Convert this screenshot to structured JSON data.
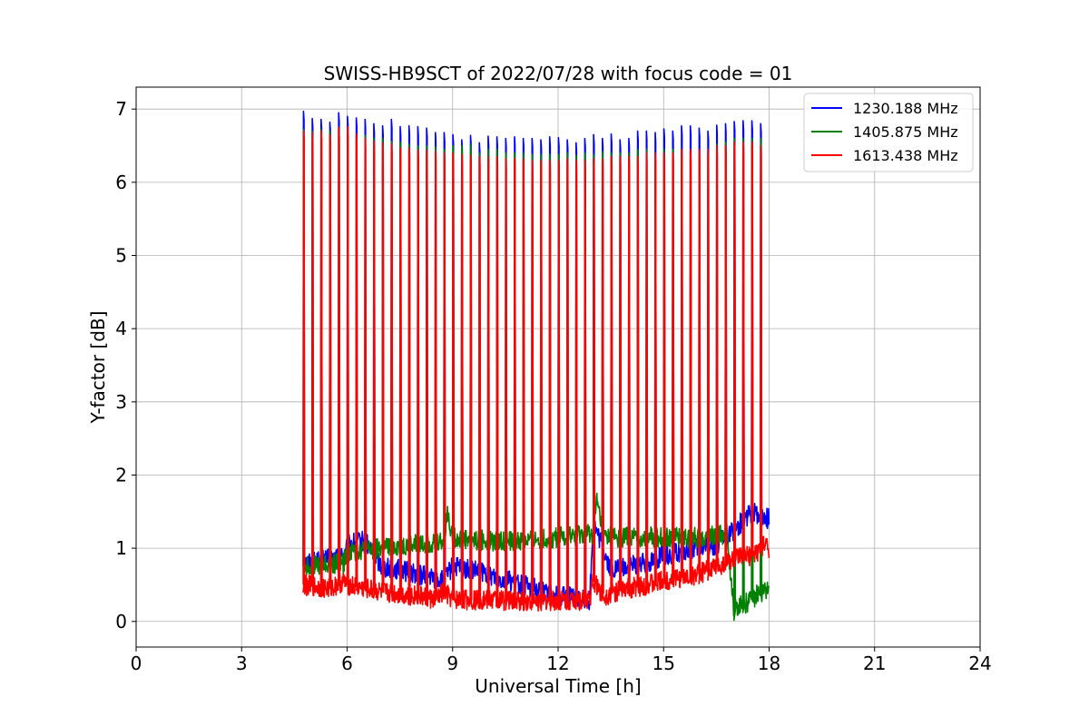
{
  "chart_data": {
    "type": "line",
    "title": "SWISS-HB9SCT of 2022/07/28 with focus code = 01",
    "xlabel": "Universal Time [h]",
    "ylabel": "Y-factor [dB]",
    "xlim": [
      0,
      24
    ],
    "ylim": [
      -0.35,
      7.3
    ],
    "xticks": [
      0,
      3,
      6,
      9,
      12,
      15,
      18,
      21,
      24
    ],
    "yticks": [
      0,
      1,
      2,
      3,
      4,
      5,
      6,
      7
    ],
    "grid": true,
    "legend_position": "top-right",
    "scan_times_h": [
      4.75,
      5.0,
      5.25,
      5.5,
      5.75,
      6.0,
      6.25,
      6.5,
      6.75,
      7.0,
      7.25,
      7.5,
      7.75,
      8.0,
      8.25,
      8.5,
      8.75,
      9.0,
      9.25,
      9.5,
      9.75,
      10.0,
      10.25,
      10.5,
      10.75,
      11.0,
      11.25,
      11.5,
      11.75,
      12.0,
      12.25,
      12.5,
      12.75,
      13.0,
      13.25,
      13.5,
      13.75,
      14.0,
      14.25,
      14.5,
      14.75,
      15.0,
      15.25,
      15.5,
      15.75,
      16.0,
      16.25,
      16.5,
      16.75,
      17.0,
      17.25,
      17.5,
      17.75
    ],
    "series": [
      {
        "name": "1230.188 MHz",
        "color": "#0000ff",
        "peaks_db": [
          6.97,
          6.87,
          6.86,
          6.82,
          6.95,
          6.9,
          6.88,
          6.86,
          6.8,
          6.77,
          6.86,
          6.76,
          6.77,
          6.76,
          6.74,
          6.68,
          6.68,
          6.65,
          6.58,
          6.64,
          6.54,
          6.63,
          6.62,
          6.6,
          6.62,
          6.6,
          6.6,
          6.58,
          6.62,
          6.61,
          6.58,
          6.54,
          6.6,
          6.65,
          6.6,
          6.66,
          6.58,
          6.6,
          6.7,
          6.7,
          6.68,
          6.73,
          6.7,
          6.77,
          6.77,
          6.74,
          6.7,
          6.78,
          6.8,
          6.83,
          6.84,
          6.84,
          6.8
        ],
        "baseline_t": [
          4.75,
          5.5,
          5.9,
          6.0,
          6.5,
          7.0,
          8.0,
          8.75,
          9.0,
          10.0,
          11.0,
          12.0,
          12.9,
          13.0,
          13.5,
          14.0,
          14.5,
          15.0,
          15.5,
          16.0,
          16.5,
          17.0,
          17.5,
          18.0
        ],
        "baseline_db": [
          0.8,
          0.85,
          0.9,
          1.05,
          1.1,
          0.75,
          0.65,
          0.55,
          0.75,
          0.65,
          0.5,
          0.35,
          0.3,
          1.35,
          0.7,
          0.75,
          0.8,
          0.9,
          0.95,
          1.0,
          1.05,
          1.25,
          1.5,
          1.4
        ]
      },
      {
        "name": "1405.875 MHz",
        "color": "#008000",
        "peaks_db": [
          6.72,
          6.7,
          6.72,
          6.7,
          6.75,
          6.72,
          6.65,
          6.64,
          6.6,
          6.6,
          6.56,
          6.55,
          6.52,
          6.5,
          6.5,
          6.48,
          6.45,
          6.5,
          6.5,
          6.52,
          6.4,
          6.45,
          6.45,
          6.4,
          6.4,
          6.4,
          6.38,
          6.38,
          6.38,
          6.38,
          6.4,
          6.37,
          6.4,
          6.38,
          6.42,
          6.4,
          6.4,
          6.4,
          6.45,
          6.45,
          6.4,
          6.45,
          6.45,
          6.45,
          6.4,
          6.38,
          6.38,
          6.52,
          6.55,
          6.6,
          6.6,
          6.6,
          6.6
        ],
        "baseline_t": [
          4.75,
          5.5,
          5.9,
          6.0,
          7.0,
          8.0,
          8.75,
          8.85,
          9.0,
          10.0,
          11.0,
          12.0,
          13.0,
          13.1,
          13.3,
          14.0,
          15.0,
          16.0,
          16.8,
          17.0,
          17.5,
          17.9,
          18.0
        ],
        "baseline_db": [
          0.75,
          0.78,
          0.8,
          0.95,
          1.0,
          1.05,
          1.1,
          1.5,
          1.15,
          1.1,
          1.1,
          1.15,
          1.2,
          1.65,
          1.15,
          1.15,
          1.15,
          1.15,
          1.2,
          0.15,
          0.3,
          0.45,
          0.45
        ]
      },
      {
        "name": "1613.438 MHz",
        "color": "#ff0000",
        "peaks_db": [
          6.7,
          6.68,
          6.7,
          6.65,
          6.75,
          6.76,
          6.66,
          6.6,
          6.56,
          6.54,
          6.52,
          6.47,
          6.47,
          6.44,
          6.44,
          6.42,
          6.4,
          6.4,
          6.38,
          6.37,
          6.35,
          6.35,
          6.35,
          6.32,
          6.32,
          6.32,
          6.3,
          6.3,
          6.3,
          6.3,
          6.32,
          6.3,
          6.3,
          6.32,
          6.32,
          6.35,
          6.35,
          6.35,
          6.35,
          6.4,
          6.4,
          6.4,
          6.4,
          6.45,
          6.45,
          6.45,
          6.45,
          6.5,
          6.5,
          6.55,
          6.55,
          6.55,
          6.5
        ],
        "baseline_t": [
          4.75,
          5.5,
          5.9,
          6.0,
          7.0,
          8.0,
          8.5,
          8.75,
          9.0,
          10.0,
          11.0,
          12.0,
          12.9,
          13.0,
          13.3,
          13.6,
          14.0,
          15.0,
          16.0,
          16.5,
          17.0,
          17.5,
          17.9,
          18.0
        ],
        "baseline_db": [
          0.5,
          0.45,
          0.55,
          0.5,
          0.4,
          0.35,
          0.3,
          0.4,
          0.3,
          0.3,
          0.28,
          0.28,
          0.3,
          0.55,
          0.35,
          0.4,
          0.45,
          0.55,
          0.65,
          0.75,
          0.85,
          0.9,
          1.05,
          1.0
        ]
      }
    ]
  }
}
